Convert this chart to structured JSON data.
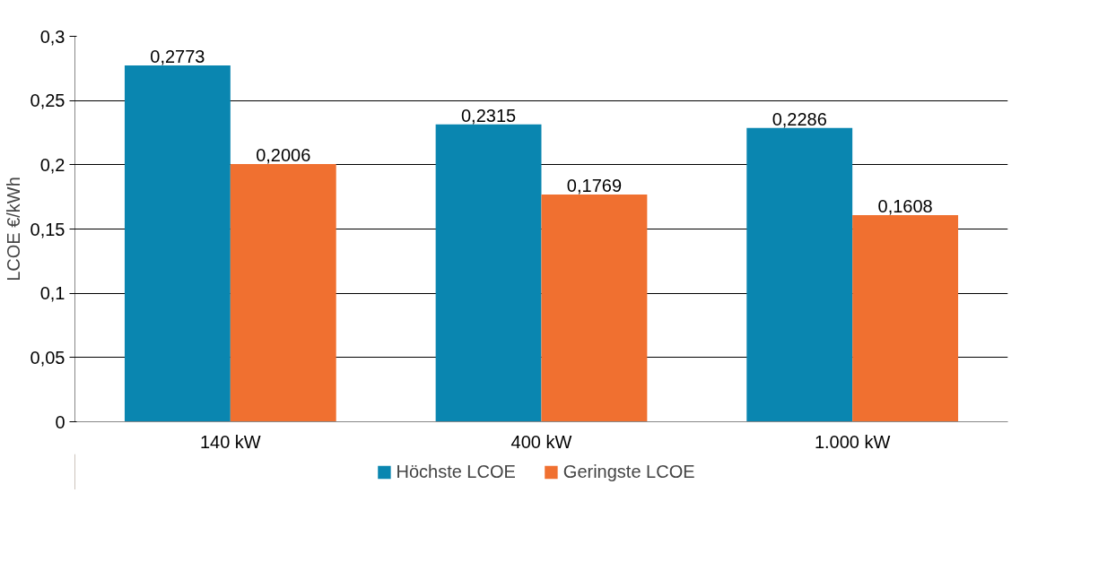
{
  "chart_data": {
    "type": "bar",
    "ylabel": "LCOE €/kWh",
    "categories": [
      "140 kW",
      "400 kW",
      "1.000 kW"
    ],
    "series": [
      {
        "name": "Höchste LCOE",
        "color": "#0a86b0",
        "values": [
          0.2773,
          0.2315,
          0.2286
        ],
        "value_labels": [
          "0,2773",
          "0,2315",
          "0,2286"
        ]
      },
      {
        "name": "Geringste LCOE",
        "color": "#f07030",
        "values": [
          0.2006,
          0.1769,
          0.1608
        ],
        "value_labels": [
          "0,2006",
          "0,1769",
          "0,1608"
        ]
      }
    ],
    "ylim": [
      0,
      0.3
    ],
    "yticks": [
      0,
      {
        "value": 0.05,
        "label": "0,05"
      },
      {
        "value": 0.1,
        "label": "0,1"
      },
      {
        "value": 0.15,
        "label": "0,15"
      },
      {
        "value": 0.2,
        "label": "0,2"
      },
      {
        "value": 0.25,
        "label": "0,25"
      },
      {
        "value": 0.3,
        "label": "0,3"
      }
    ],
    "grid": "y",
    "legend": "bottom"
  }
}
